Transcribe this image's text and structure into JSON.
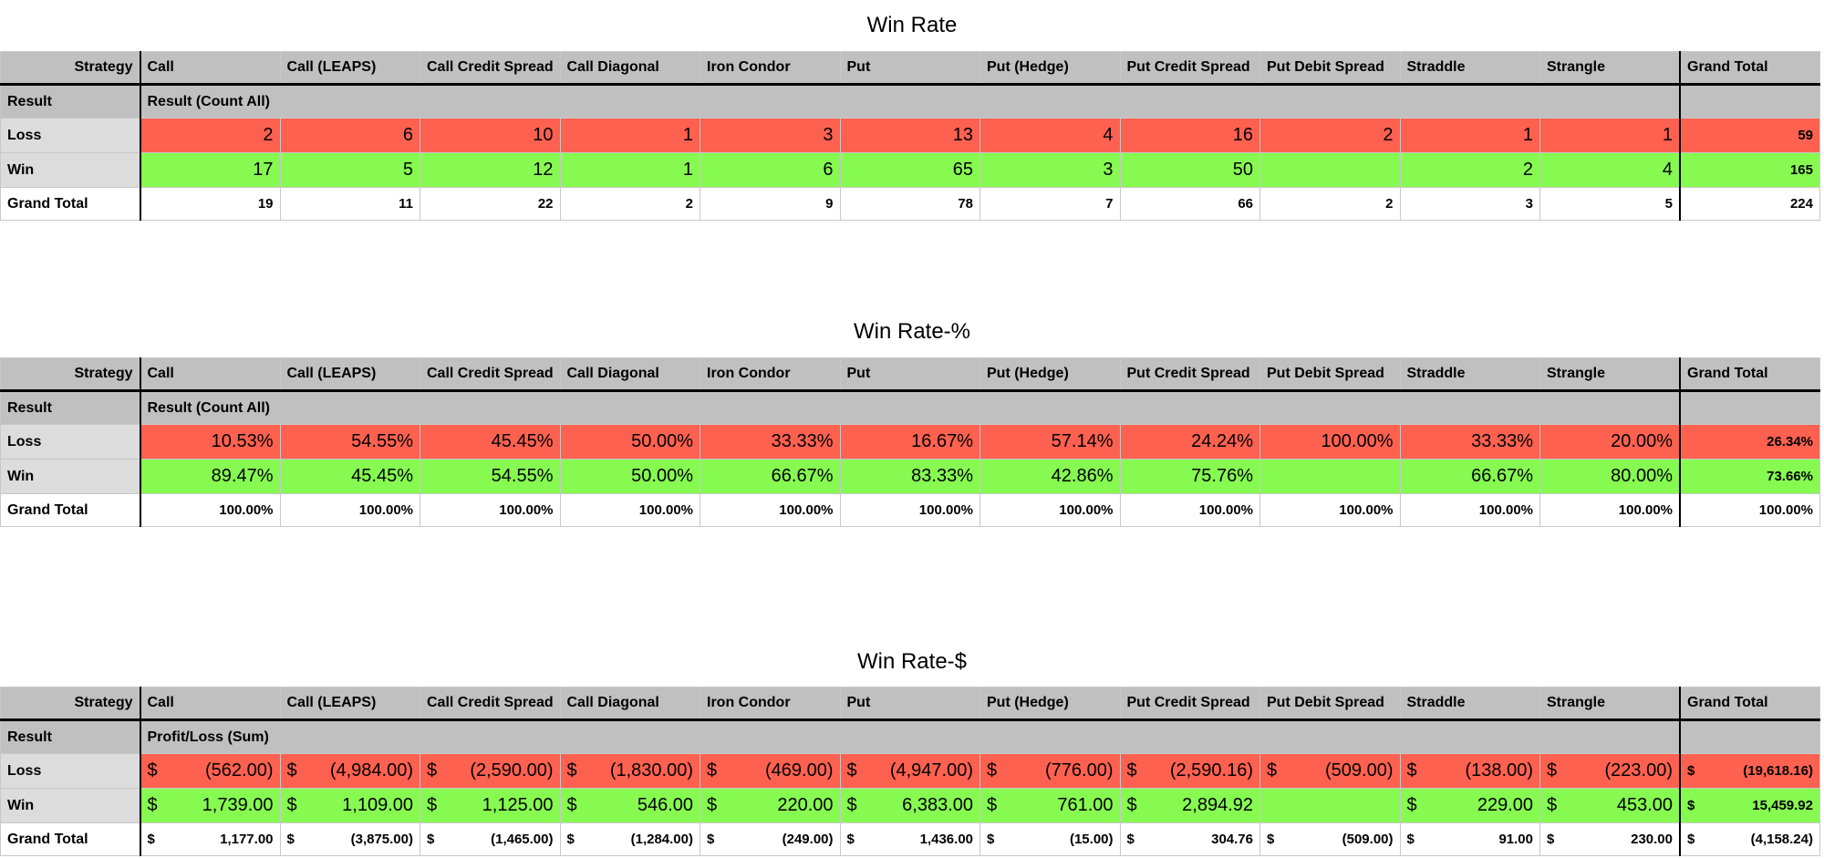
{
  "tables": [
    {
      "title": "Win Rate",
      "corner": "Strategy",
      "columns": [
        "Call",
        "Call (LEAPS)",
        "Call Credit Spread",
        "Call Diagonal",
        "Iron Condor",
        "Put",
        "Put (Hedge)",
        "Put Credit Spread",
        "Put Debit Spread",
        "Straddle",
        "Strangle"
      ],
      "grand_total_col": "Grand Total",
      "result_label": "Result",
      "measure": "Result (Count All)",
      "rows": [
        {
          "label": "Loss",
          "values": [
            "2",
            "6",
            "10",
            "1",
            "3",
            "13",
            "4",
            "16",
            "2",
            "1",
            "1"
          ],
          "total": "59"
        },
        {
          "label": "Win",
          "values": [
            "17",
            "5",
            "12",
            "1",
            "6",
            "65",
            "3",
            "50",
            null,
            "2",
            "4"
          ],
          "total": "165"
        }
      ],
      "grand_total_row": {
        "label": "Grand Total",
        "values": [
          "19",
          "11",
          "22",
          "2",
          "9",
          "78",
          "7",
          "66",
          "2",
          "3",
          "5"
        ],
        "total": "224"
      }
    },
    {
      "title": "Win Rate-%",
      "corner": "Strategy",
      "columns": [
        "Call",
        "Call (LEAPS)",
        "Call Credit Spread",
        "Call Diagonal",
        "Iron Condor",
        "Put",
        "Put (Hedge)",
        "Put Credit Spread",
        "Put Debit Spread",
        "Straddle",
        "Strangle"
      ],
      "grand_total_col": "Grand Total",
      "result_label": "Result",
      "measure": "Result (Count All)",
      "rows": [
        {
          "label": "Loss",
          "values": [
            "10.53%",
            "54.55%",
            "45.45%",
            "50.00%",
            "33.33%",
            "16.67%",
            "57.14%",
            "24.24%",
            "100.00%",
            "33.33%",
            "20.00%"
          ],
          "total": "26.34%"
        },
        {
          "label": "Win",
          "values": [
            "89.47%",
            "45.45%",
            "54.55%",
            "50.00%",
            "66.67%",
            "83.33%",
            "42.86%",
            "75.76%",
            null,
            "66.67%",
            "80.00%"
          ],
          "total": "73.66%"
        }
      ],
      "grand_total_row": {
        "label": "Grand Total",
        "values": [
          "100.00%",
          "100.00%",
          "100.00%",
          "100.00%",
          "100.00%",
          "100.00%",
          "100.00%",
          "100.00%",
          "100.00%",
          "100.00%",
          "100.00%"
        ],
        "total": "100.00%"
      }
    },
    {
      "title": "Win Rate-$",
      "corner": "Strategy",
      "columns": [
        "Call",
        "Call (LEAPS)",
        "Call Credit Spread",
        "Call Diagonal",
        "Iron Condor",
        "Put",
        "Put (Hedge)",
        "Put Credit Spread",
        "Put Debit Spread",
        "Straddle",
        "Strangle"
      ],
      "grand_total_col": "Grand Total",
      "result_label": "Result",
      "measure": "Profit/Loss (Sum)",
      "currency": "$",
      "rows": [
        {
          "label": "Loss",
          "values": [
            "(562.00)",
            "(4,984.00)",
            "(2,590.00)",
            "(1,830.00)",
            "(469.00)",
            "(4,947.00)",
            "(776.00)",
            "(2,590.16)",
            "(509.00)",
            "(138.00)",
            "(223.00)"
          ],
          "total": "(19,618.16)"
        },
        {
          "label": "Win",
          "values": [
            "1,739.00",
            "1,109.00",
            "1,125.00",
            "546.00",
            "220.00",
            "6,383.00",
            "761.00",
            "2,894.92",
            null,
            "229.00",
            "453.00"
          ],
          "total": "15,459.92"
        }
      ],
      "grand_total_row": {
        "label": "Grand Total",
        "values": [
          "1,177.00",
          "(3,875.00)",
          "(1,465.00)",
          "(1,284.00)",
          "(249.00)",
          "1,436.00",
          "(15.00)",
          "304.76",
          "(509.00)",
          "91.00",
          "230.00"
        ],
        "total": "(4,158.24)"
      }
    }
  ]
}
